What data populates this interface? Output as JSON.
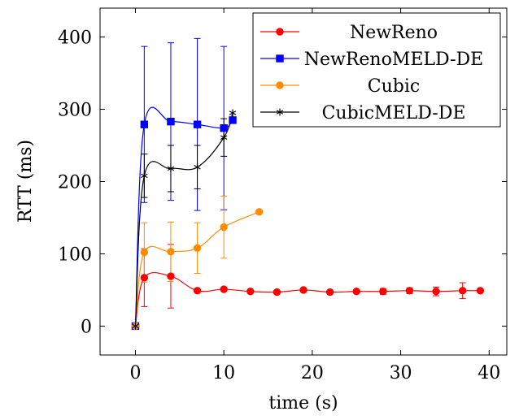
{
  "chart_data": {
    "type": "line",
    "xlabel": "time (s)",
    "ylabel": "RTT (ms)",
    "xlim": [
      -4,
      42
    ],
    "ylim": [
      -40,
      440
    ],
    "xticks": [
      0,
      10,
      20,
      30,
      40
    ],
    "yticks": [
      0,
      100,
      200,
      300,
      400
    ],
    "xtick_labels": [
      "0",
      "10",
      "20",
      "30",
      "40"
    ],
    "ytick_labels": [
      "0",
      "100",
      "200",
      "300",
      "400"
    ],
    "grid": false,
    "legend_position": "top-right",
    "series": [
      {
        "name": "NewReno",
        "color": "#ff0000",
        "marker": "circle",
        "x": [
          0,
          1,
          4,
          7,
          10,
          13,
          16,
          19,
          22,
          25,
          28,
          31,
          34,
          37,
          39
        ],
        "y": [
          0,
          67,
          69,
          49,
          51,
          48,
          47,
          50,
          47,
          48,
          48,
          49,
          48,
          49,
          49
        ],
        "err": [
          0,
          40,
          44,
          0,
          0,
          0,
          0,
          0,
          0,
          0,
          4,
          4,
          6,
          11,
          0
        ]
      },
      {
        "name": "NewRenoMELD-DE",
        "color": "#0000ff",
        "marker": "square",
        "x": [
          0,
          1,
          4,
          7,
          10,
          11
        ],
        "y": [
          0,
          279,
          283,
          279,
          274,
          285
        ],
        "err": [
          0,
          108,
          109,
          119,
          113,
          0
        ]
      },
      {
        "name": "Cubic",
        "color": "#ff8c00",
        "marker": "circle",
        "x": [
          0,
          1,
          4,
          7,
          10,
          14
        ],
        "y": [
          0,
          102,
          103,
          108,
          137,
          158
        ],
        "err": [
          0,
          41,
          41,
          35,
          43,
          0
        ]
      },
      {
        "name": "CubicMELD-DE",
        "color": "#000000",
        "marker": "star",
        "x": [
          0,
          1,
          4,
          7,
          10,
          11
        ],
        "y": [
          0,
          208,
          218,
          220,
          261,
          295
        ],
        "err": [
          0,
          30,
          32,
          30,
          26,
          0
        ]
      }
    ]
  }
}
